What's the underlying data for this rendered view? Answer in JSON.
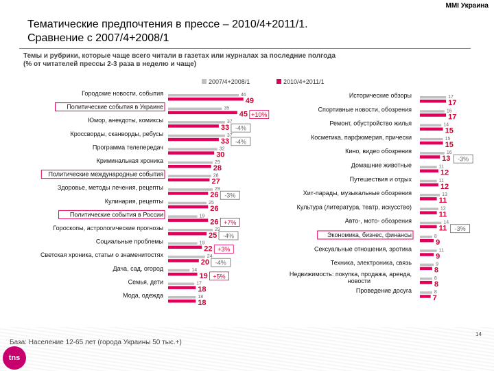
{
  "brand": "MMI Украина",
  "title_line1": "Тематические предпочтения в прессе – 2010/4+2011/1.",
  "title_line2": "Сравнение с 2007/4+2008/1",
  "subtitle_line1": "Темы и рубрики, которые чаще всего читали в газетах или журналах за последние полгода",
  "subtitle_line2": "(% от читателей прессы 2-3 раза в неделю и чаще)",
  "footer": "База: Население 12-65 лет (города Украины 50 тыс.+)",
  "page_number": "14",
  "logo": "tns",
  "colors": {
    "old": "#c0c0c0",
    "new": "#e0005a",
    "new_text": "#cc0033",
    "border": "#e0005a",
    "muted": "#666666"
  },
  "chart_data": {
    "type": "bar",
    "title": "Тематические предпочтения в прессе",
    "xlabel": "",
    "ylabel": "% от читателей прессы",
    "legend": {
      "position": "top",
      "labels": [
        "2007/4+2008/1",
        "2010/4+2011/1"
      ]
    },
    "left_panel": {
      "categories": [
        {
          "label": "Городские новости, события",
          "old": 46,
          "new": 49,
          "change": "",
          "highlight": false
        },
        {
          "label": "Политические события в Украине",
          "old": 35,
          "new": 45,
          "change": "+10%",
          "highlight": true
        },
        {
          "label": "Юмор, анекдоты, комиксы",
          "old": 37,
          "new": 33,
          "change": "-4%",
          "highlight": false
        },
        {
          "label": "Кроссворды, сканворды, ребусы",
          "old": 37,
          "new": 33,
          "change": "-4%",
          "highlight": false
        },
        {
          "label": "Программа телепередач",
          "old": 32,
          "new": 30,
          "change": "",
          "highlight": false
        },
        {
          "label": "Криминальная хроника",
          "old": 29,
          "new": 28,
          "change": "",
          "highlight": false
        },
        {
          "label": "Политические международные события",
          "old": 28,
          "new": 27,
          "change": "",
          "highlight": true
        },
        {
          "label": "Здоровье, методы лечения, рецепты",
          "old": 29,
          "new": 26,
          "change": "-3%",
          "highlight": false
        },
        {
          "label": "Кулинария, рецепты",
          "old": 25,
          "new": 26,
          "change": "",
          "highlight": false
        },
        {
          "label": "Политические события в России",
          "old": 19,
          "new": 26,
          "change": "+7%",
          "highlight": true
        },
        {
          "label": "Гороскопы, астрологические прогнозы",
          "old": 29,
          "new": 25,
          "change": "-4%",
          "highlight": false
        },
        {
          "label": "Социальные проблемы",
          "old": 19,
          "new": 22,
          "change": "+3%",
          "highlight": false
        },
        {
          "label": "Светская хроника, статьи о знаменитостях",
          "old": 24,
          "new": 20,
          "change": "-4%",
          "highlight": false
        },
        {
          "label": "Дача, сад, огород",
          "old": 14,
          "new": 19,
          "change": "+5%",
          "highlight": false
        },
        {
          "label": "Семья, дети",
          "old": 17,
          "new": 18,
          "change": "",
          "highlight": false
        },
        {
          "label": "Мода, одежда",
          "old": 18,
          "new": 18,
          "change": "",
          "highlight": false
        }
      ]
    },
    "right_panel": {
      "categories": [
        {
          "label": "Исторические обзоры",
          "old": 17,
          "new": 17,
          "change": "",
          "highlight": false
        },
        {
          "label": "Спортивные новости, обозрения",
          "old": 16,
          "new": 17,
          "change": "",
          "highlight": false
        },
        {
          "label": "Ремонт, обустройство жилья",
          "old": 14,
          "new": 15,
          "change": "",
          "highlight": false
        },
        {
          "label": "Косметика, парфюмерия, прически",
          "old": 15,
          "new": 15,
          "change": "",
          "highlight": false
        },
        {
          "label": "Кино, видео обозрения",
          "old": 16,
          "new": 13,
          "change": "-3%",
          "highlight": false
        },
        {
          "label": "Домашние животные",
          "old": 11,
          "new": 12,
          "change": "",
          "highlight": false
        },
        {
          "label": "Путешествия и отдых",
          "old": 11,
          "new": 12,
          "change": "",
          "highlight": false
        },
        {
          "label": "Хит-парады, музыкальные обозрения",
          "old": 13,
          "new": 11,
          "change": "",
          "highlight": false
        },
        {
          "label": "Культура (литература, театр, искусство)",
          "old": 12,
          "new": 11,
          "change": "",
          "highlight": false
        },
        {
          "label": "Авто-, мото- обозрения",
          "old": 14,
          "new": 11,
          "change": "-3%",
          "highlight": false
        },
        {
          "label": "Экономика, бизнес, финансы",
          "old": 8,
          "new": 9,
          "change": "",
          "highlight": true
        },
        {
          "label": "Сексуальные отношения, эротика",
          "old": 11,
          "new": 9,
          "change": "",
          "highlight": false
        },
        {
          "label": "Техника, электроника, связь",
          "old": 9,
          "new": 8,
          "change": "",
          "highlight": false
        },
        {
          "label": "Недвижимость: покупка, продажа, аренда, новости",
          "old": 8,
          "new": 8,
          "change": "",
          "highlight": false
        },
        {
          "label": "Проведение досуга",
          "old": 8,
          "new": 7,
          "change": "",
          "highlight": false
        }
      ]
    }
  }
}
